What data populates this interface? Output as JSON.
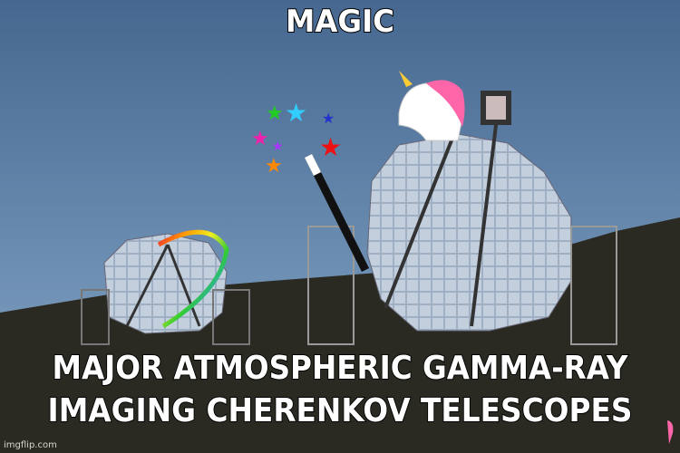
{
  "top_text": "MAGIC",
  "bottom_text": [
    "MAJOR ATMOSPHERIC GAMMA-RAY",
    "IMAGING CHERENKOV TELESCOPES"
  ],
  "watermark": "imgflip.com"
}
